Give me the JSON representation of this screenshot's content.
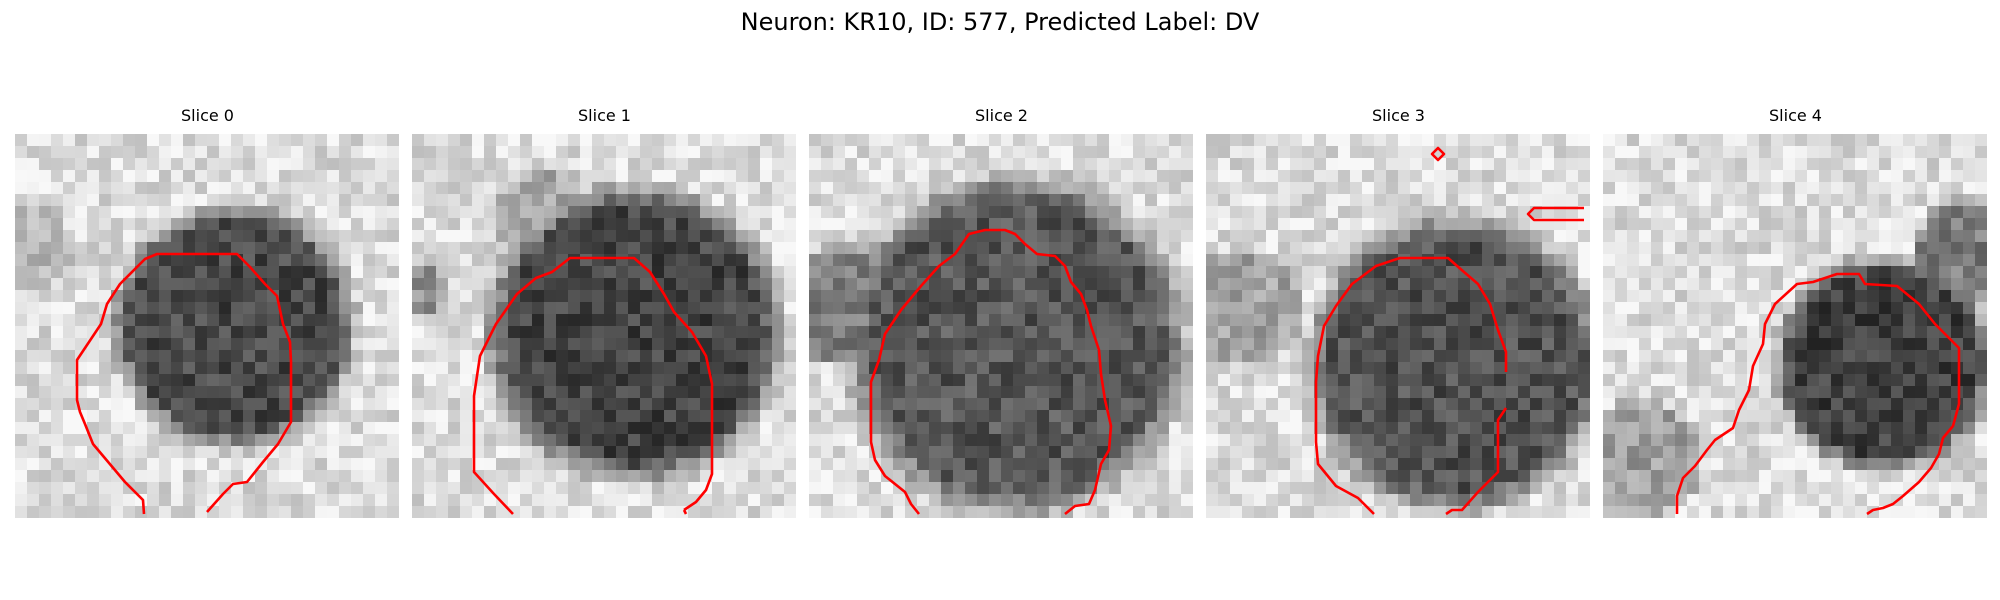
{
  "figure": {
    "title": "Neuron: KR10, ID: 577, Predicted Label: DV"
  },
  "panels": [
    {
      "title": "Slice 0",
      "image": "grayscale-microscopy-slice-with-red-contour"
    },
    {
      "title": "Slice 1",
      "image": "grayscale-microscopy-slice-with-red-contour"
    },
    {
      "title": "Slice 2",
      "image": "grayscale-microscopy-slice-with-red-contour"
    },
    {
      "title": "Slice 3",
      "image": "grayscale-microscopy-slice-with-red-contour"
    },
    {
      "title": "Slice 4",
      "image": "grayscale-microscopy-slice-with-red-contour"
    }
  ],
  "colors": {
    "background": "#ffffff",
    "contour": "#ff0000"
  }
}
